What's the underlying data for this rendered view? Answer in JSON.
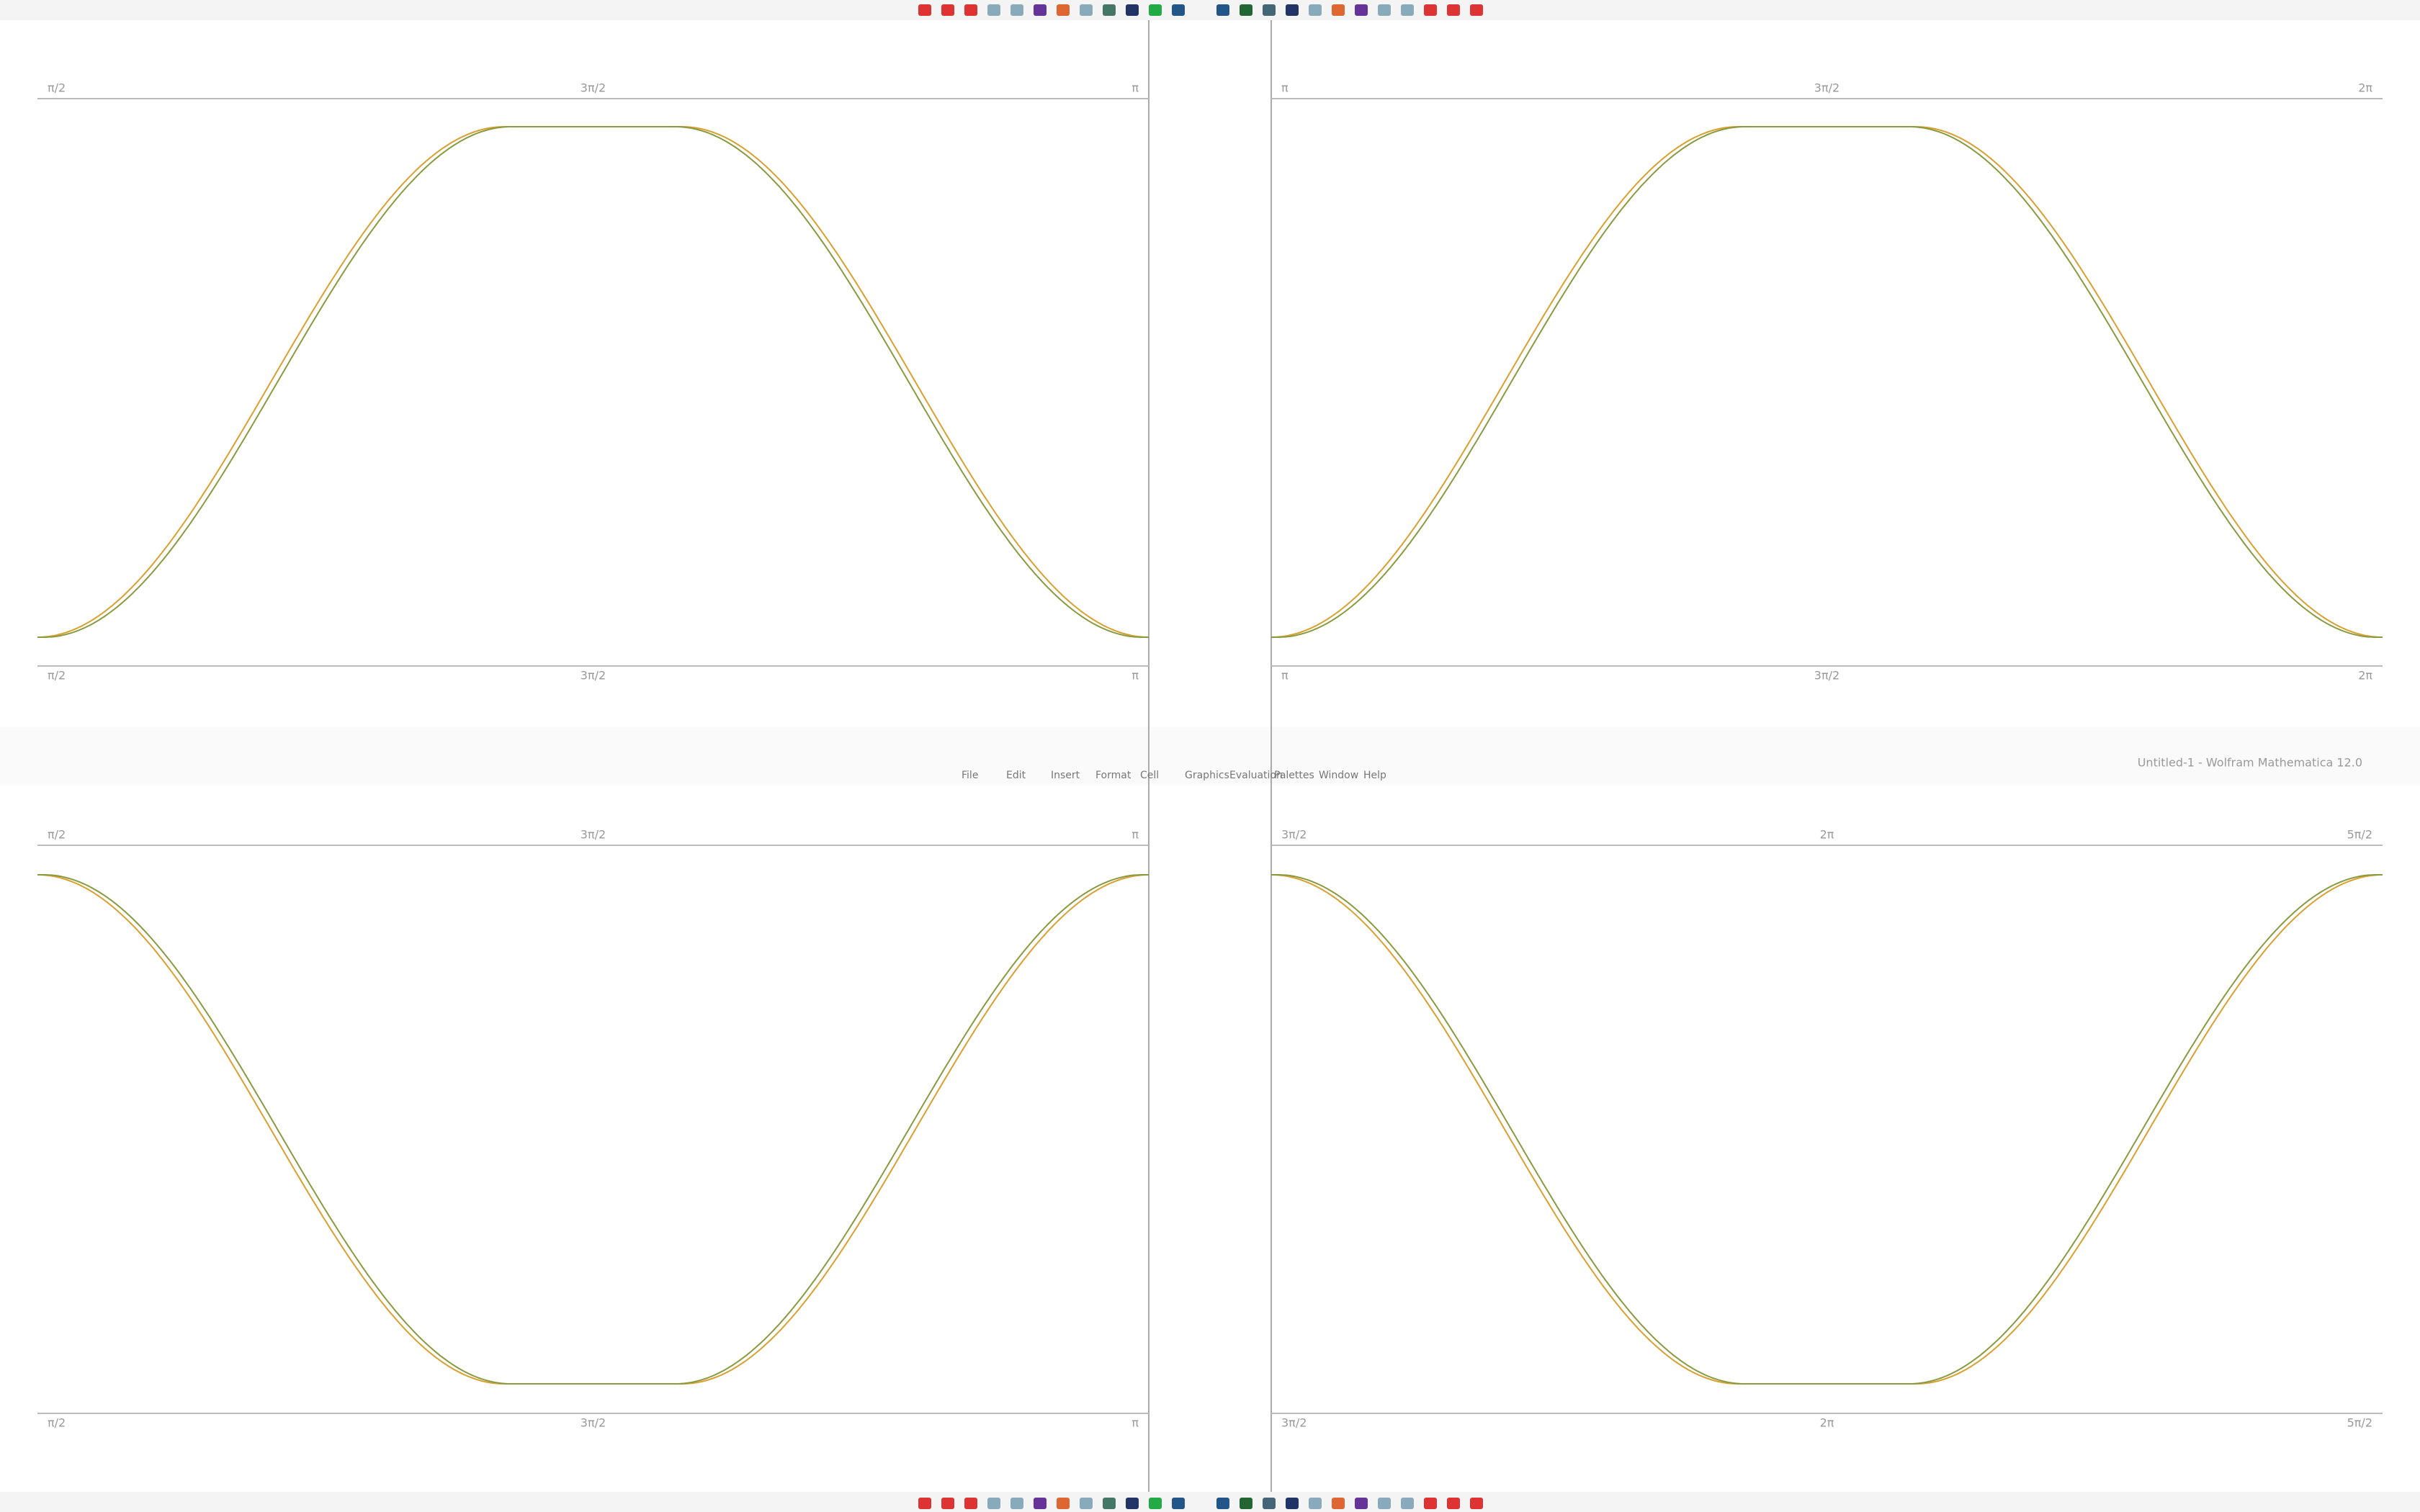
{
  "window_title": "Untitled-1 - Wolfram Mathematica 12.0",
  "menu_bar": {
    "items": [
      "File",
      "Edit",
      "Insert",
      "Format",
      "Cell",
      "Graphics",
      "Evaluation",
      "Palettes",
      "Window",
      "Help"
    ]
  },
  "panels": [
    {
      "left": "π/2",
      "center": "3π/2",
      "right": "π"
    },
    {
      "left": "π",
      "center": "3π/2",
      "right": "2π"
    },
    {
      "left": "π/2",
      "center": "3π/2",
      "right": "π"
    },
    {
      "left": "3π/2",
      "center": "2π",
      "right": "5π/2"
    }
  ]
}
